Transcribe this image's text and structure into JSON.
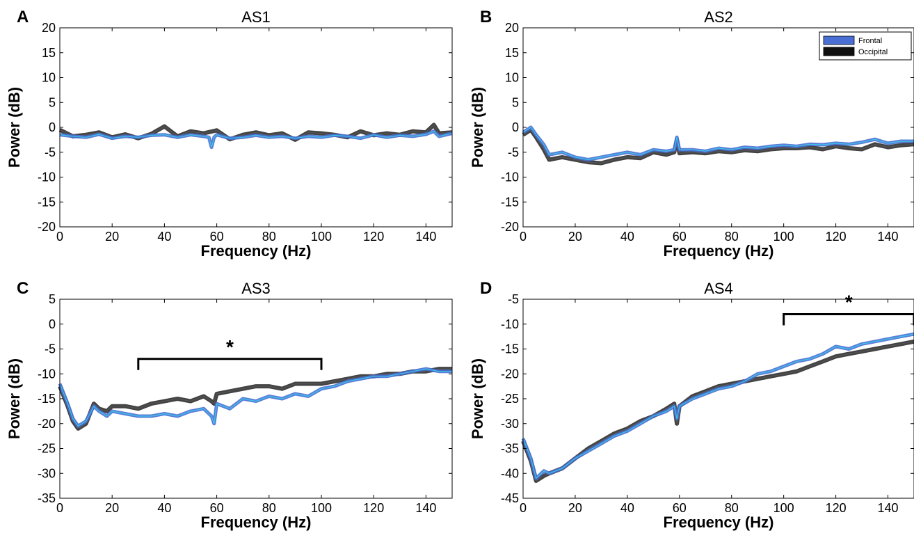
{
  "figure": {
    "legend": [
      {
        "label": "Frontal",
        "color": "#4a6fd4"
      },
      {
        "label": "Occipital",
        "color": "#111111"
      }
    ]
  },
  "chart_data": [
    {
      "type": "line",
      "panel": "A",
      "title": "AS1",
      "xlabel": "Frequency (Hz)",
      "ylabel": "Power (dB)",
      "xlim": [
        0,
        150
      ],
      "ylim": [
        -20,
        20
      ],
      "xticks": [
        0,
        20,
        40,
        60,
        80,
        100,
        120,
        140
      ],
      "yticks": [
        -20,
        -15,
        -10,
        -5,
        0,
        5,
        10,
        15,
        20
      ],
      "legend": false,
      "significance": null,
      "series": [
        {
          "name": "Frontal",
          "color": "#4a6fd4",
          "x": [
            0,
            5,
            10,
            15,
            20,
            25,
            30,
            35,
            40,
            45,
            50,
            55,
            57,
            58,
            59,
            60,
            65,
            70,
            75,
            80,
            85,
            90,
            95,
            100,
            105,
            110,
            115,
            120,
            125,
            130,
            135,
            140,
            143,
            145,
            150
          ],
          "y": [
            -1.5,
            -1.8,
            -2.0,
            -1.4,
            -2.2,
            -1.8,
            -2.0,
            -1.6,
            -1.5,
            -2.0,
            -1.5,
            -1.8,
            -2.0,
            -4.0,
            -2.0,
            -1.5,
            -2.2,
            -2.0,
            -1.6,
            -2.0,
            -1.8,
            -2.2,
            -1.8,
            -2.0,
            -1.6,
            -1.8,
            -2.2,
            -1.5,
            -2.0,
            -1.6,
            -1.8,
            -1.4,
            -0.8,
            -1.8,
            -1.2
          ]
        },
        {
          "name": "Occipital",
          "color": "#111111",
          "x": [
            0,
            5,
            10,
            15,
            20,
            25,
            30,
            35,
            40,
            45,
            50,
            55,
            60,
            65,
            70,
            75,
            80,
            85,
            90,
            95,
            100,
            105,
            110,
            115,
            120,
            125,
            130,
            135,
            140,
            143,
            145,
            150
          ],
          "y": [
            -0.5,
            -1.8,
            -1.5,
            -1.0,
            -2.0,
            -1.4,
            -2.2,
            -1.3,
            0.2,
            -1.8,
            -0.8,
            -1.2,
            -0.6,
            -2.4,
            -1.5,
            -1.0,
            -1.6,
            -1.2,
            -2.5,
            -1.0,
            -1.2,
            -1.5,
            -2.0,
            -0.8,
            -1.6,
            -1.2,
            -1.5,
            -0.8,
            -1.0,
            0.5,
            -1.2,
            -1.0
          ]
        }
      ]
    },
    {
      "type": "line",
      "panel": "B",
      "title": "AS2",
      "xlabel": "Frequency (Hz)",
      "ylabel": "Power (dB)",
      "xlim": [
        0,
        150
      ],
      "ylim": [
        -20,
        20
      ],
      "xticks": [
        0,
        20,
        40,
        60,
        80,
        100,
        120,
        140
      ],
      "yticks": [
        -20,
        -15,
        -10,
        -5,
        0,
        5,
        10,
        15,
        20
      ],
      "legend": true,
      "legend_position": "top-right",
      "significance": null,
      "series": [
        {
          "name": "Frontal",
          "color": "#4a6fd4",
          "x": [
            0,
            3,
            5,
            8,
            10,
            15,
            20,
            25,
            30,
            35,
            40,
            45,
            50,
            55,
            58,
            59,
            60,
            65,
            70,
            75,
            80,
            85,
            90,
            95,
            100,
            105,
            110,
            115,
            120,
            125,
            130,
            135,
            140,
            145,
            150
          ],
          "y": [
            -1.0,
            0.0,
            -1.5,
            -3.5,
            -5.5,
            -5.0,
            -6.0,
            -6.5,
            -6.0,
            -5.5,
            -5.0,
            -5.5,
            -4.5,
            -4.8,
            -4.5,
            -2.0,
            -4.5,
            -4.5,
            -4.8,
            -4.2,
            -4.5,
            -4.0,
            -4.2,
            -3.8,
            -3.6,
            -3.8,
            -3.4,
            -3.5,
            -3.2,
            -3.4,
            -3.0,
            -2.4,
            -3.2,
            -2.8,
            -2.8
          ]
        },
        {
          "name": "Occipital",
          "color": "#111111",
          "x": [
            0,
            3,
            5,
            8,
            10,
            15,
            20,
            25,
            30,
            35,
            40,
            45,
            50,
            55,
            58,
            59,
            60,
            65,
            70,
            75,
            80,
            85,
            90,
            95,
            100,
            105,
            110,
            115,
            120,
            125,
            130,
            135,
            140,
            145,
            150
          ],
          "y": [
            -1.5,
            -0.5,
            -2.0,
            -4.5,
            -6.5,
            -6.0,
            -6.5,
            -7.0,
            -7.2,
            -6.5,
            -6.0,
            -6.2,
            -5.0,
            -5.5,
            -5.0,
            -2.5,
            -5.2,
            -5.0,
            -5.2,
            -4.8,
            -5.0,
            -4.6,
            -4.8,
            -4.4,
            -4.2,
            -4.2,
            -4.0,
            -4.4,
            -3.8,
            -4.2,
            -4.4,
            -3.4,
            -4.0,
            -3.6,
            -3.4
          ]
        }
      ]
    },
    {
      "type": "line",
      "panel": "C",
      "title": "AS3",
      "xlabel": "Frequency (Hz)",
      "ylabel": "Power (dB)",
      "xlim": [
        0,
        150
      ],
      "ylim": [
        -35,
        5
      ],
      "xticks": [
        0,
        20,
        40,
        60,
        80,
        100,
        120,
        140
      ],
      "yticks": [
        -35,
        -30,
        -25,
        -20,
        -15,
        -10,
        -5,
        0,
        5
      ],
      "legend": false,
      "significance": {
        "x_start": 30,
        "x_end": 100,
        "y": -7,
        "label": "*"
      },
      "series": [
        {
          "name": "Frontal",
          "color": "#4a6fd4",
          "x": [
            0,
            3,
            5,
            7,
            10,
            13,
            15,
            18,
            20,
            25,
            30,
            35,
            40,
            45,
            50,
            55,
            58,
            59,
            60,
            65,
            70,
            75,
            80,
            85,
            90,
            95,
            100,
            105,
            110,
            115,
            120,
            125,
            130,
            135,
            140,
            145,
            150
          ],
          "y": [
            -12.0,
            -16.0,
            -19.0,
            -20.5,
            -19.5,
            -16.5,
            -17.5,
            -18.5,
            -17.5,
            -18.0,
            -18.5,
            -18.5,
            -18.0,
            -18.5,
            -17.5,
            -17.0,
            -18.5,
            -20.0,
            -16.0,
            -17.0,
            -15.0,
            -15.5,
            -14.5,
            -15.0,
            -14.0,
            -14.5,
            -13.0,
            -12.5,
            -11.5,
            -11.0,
            -10.5,
            -10.5,
            -10.0,
            -9.5,
            -9.0,
            -9.5,
            -9.5
          ]
        },
        {
          "name": "Occipital",
          "color": "#111111",
          "x": [
            0,
            3,
            5,
            7,
            10,
            13,
            15,
            18,
            20,
            25,
            30,
            35,
            40,
            45,
            50,
            55,
            58,
            59,
            60,
            65,
            70,
            75,
            80,
            85,
            90,
            95,
            100,
            105,
            110,
            115,
            120,
            125,
            130,
            135,
            140,
            145,
            150
          ],
          "y": [
            -12.5,
            -16.5,
            -19.5,
            -21.0,
            -20.0,
            -16.0,
            -17.0,
            -17.5,
            -16.5,
            -16.5,
            -17.0,
            -16.0,
            -15.5,
            -15.0,
            -15.5,
            -14.5,
            -15.5,
            -16.0,
            -14.0,
            -13.5,
            -13.0,
            -12.5,
            -12.5,
            -13.0,
            -12.0,
            -12.0,
            -12.0,
            -11.5,
            -11.0,
            -10.5,
            -10.5,
            -10.0,
            -10.0,
            -9.5,
            -9.5,
            -9.0,
            -9.0
          ]
        }
      ]
    },
    {
      "type": "line",
      "panel": "D",
      "title": "AS4",
      "xlabel": "Frequency (Hz)",
      "ylabel": "Power (dB)",
      "xlim": [
        0,
        150
      ],
      "ylim": [
        -45,
        -5
      ],
      "xticks": [
        0,
        20,
        40,
        60,
        80,
        100,
        120,
        140
      ],
      "yticks": [
        -45,
        -40,
        -35,
        -30,
        -25,
        -20,
        -15,
        -10,
        -5
      ],
      "legend": false,
      "significance": {
        "x_start": 100,
        "x_end": 150,
        "y": -8,
        "label": "*"
      },
      "series": [
        {
          "name": "Frontal",
          "color": "#4a6fd4",
          "x": [
            0,
            3,
            5,
            8,
            10,
            15,
            20,
            25,
            30,
            35,
            40,
            45,
            50,
            55,
            58,
            59,
            60,
            65,
            70,
            75,
            80,
            85,
            90,
            95,
            100,
            105,
            110,
            115,
            120,
            125,
            130,
            135,
            140,
            145,
            150
          ],
          "y": [
            -33.0,
            -37.0,
            -41.0,
            -39.5,
            -40.0,
            -39.0,
            -37.0,
            -35.5,
            -34.0,
            -32.5,
            -31.5,
            -30.0,
            -28.5,
            -27.5,
            -26.5,
            -29.0,
            -26.5,
            -25.0,
            -24.0,
            -23.0,
            -22.5,
            -21.5,
            -20.0,
            -19.5,
            -18.5,
            -17.5,
            -17.0,
            -16.0,
            -14.5,
            -15.0,
            -14.0,
            -13.5,
            -13.0,
            -12.5,
            -12.0
          ]
        },
        {
          "name": "Occipital",
          "color": "#111111",
          "x": [
            0,
            3,
            5,
            8,
            10,
            15,
            20,
            25,
            30,
            35,
            40,
            45,
            50,
            55,
            58,
            59,
            60,
            65,
            70,
            75,
            80,
            85,
            90,
            95,
            100,
            105,
            110,
            115,
            120,
            125,
            130,
            135,
            140,
            145,
            150
          ],
          "y": [
            -33.5,
            -37.5,
            -41.5,
            -40.5,
            -40.0,
            -39.0,
            -37.0,
            -35.0,
            -33.5,
            -32.0,
            -31.0,
            -29.5,
            -28.5,
            -27.0,
            -26.0,
            -30.0,
            -26.5,
            -24.5,
            -23.5,
            -22.5,
            -22.0,
            -21.5,
            -21.0,
            -20.5,
            -20.0,
            -19.5,
            -18.5,
            -17.5,
            -16.5,
            -16.0,
            -15.5,
            -15.0,
            -14.5,
            -14.0,
            -13.5
          ]
        }
      ]
    }
  ]
}
